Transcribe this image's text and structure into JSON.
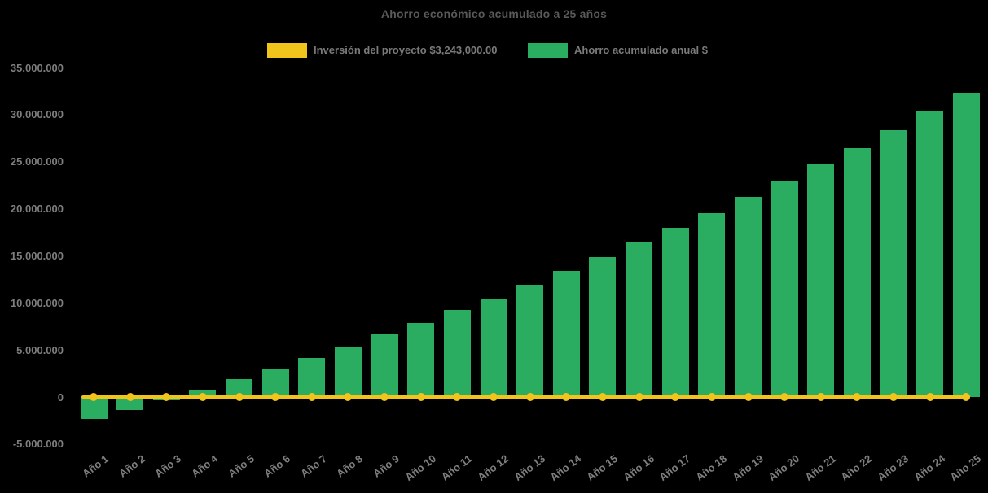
{
  "chart_data": {
    "type": "bar",
    "title": "Ahorro económico acumulado a 25 años",
    "legend_position": "top",
    "grid": false,
    "background_color": "#000000",
    "title_color": "#595959",
    "axis_label_color": "#7f7f7f",
    "categories": [
      "Año 1",
      "Año 2",
      "Año 3",
      "Año 4",
      "Año 5",
      "Año 6",
      "Año 7",
      "Año 8",
      "Año 9",
      "Año 10",
      "Año 11",
      "Año 12",
      "Año 13",
      "Año 14",
      "Año 15",
      "Año 16",
      "Año 17",
      "Año 18",
      "Año 19",
      "Año 20",
      "Año 21",
      "Año 22",
      "Año 23",
      "Año 24",
      "Año 25"
    ],
    "series": [
      {
        "name": "Inversión del proyecto $3,243,000.00",
        "type": "line",
        "color": "#F0C41A",
        "values": [
          0,
          0,
          0,
          0,
          0,
          0,
          0,
          0,
          0,
          0,
          0,
          0,
          0,
          0,
          0,
          0,
          0,
          0,
          0,
          0,
          0,
          0,
          0,
          0,
          0
        ]
      },
      {
        "name": "Ahorro acumulado anual $",
        "type": "bar",
        "color": "#2AAC61",
        "values": [
          -2300000,
          -1350000,
          -350000,
          800000,
          1900000,
          3000000,
          4150000,
          5350000,
          6650000,
          7900000,
          9250000,
          10500000,
          11900000,
          13400000,
          14900000,
          16400000,
          17950000,
          19500000,
          21300000,
          22950000,
          24700000,
          26450000,
          28350000,
          30300000,
          32350000
        ]
      }
    ],
    "y_axis": {
      "min": -5000000,
      "max": 35000000,
      "step": 5000000,
      "tick_values": [
        -5000000,
        0,
        5000000,
        10000000,
        15000000,
        20000000,
        25000000,
        30000000,
        35000000
      ],
      "tick_labels": [
        "-5.000.000",
        "0",
        "5.000.000",
        "10.000.000",
        "15.000.000",
        "20.000.000",
        "25.000.000",
        "30.000.000",
        "35.000.000"
      ]
    }
  }
}
